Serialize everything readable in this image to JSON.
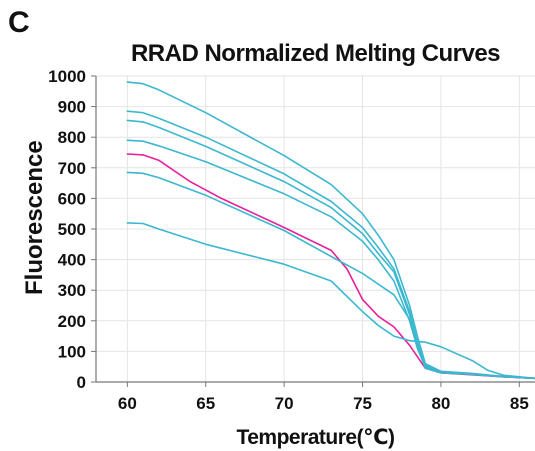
{
  "panel_label": "C",
  "chart_data": {
    "type": "line",
    "title": "RRAD Normalized Melting Curves",
    "xlabel": "Temperature(℃)",
    "ylabel": "Fluorescence",
    "xlim": [
      58,
      86
    ],
    "ylim": [
      0,
      1000
    ],
    "xticks": [
      60,
      65,
      70,
      75,
      80,
      85
    ],
    "yticks": [
      0,
      100,
      200,
      300,
      400,
      500,
      600,
      700,
      800,
      900,
      1000
    ],
    "grid": true,
    "legend": "none",
    "colors": {
      "cyan": "#3bb8d0",
      "magenta": "#e8209a"
    },
    "series": [
      {
        "color": "#3bb8d0",
        "x": [
          60,
          61,
          62,
          65,
          70,
          73,
          75,
          76,
          77,
          78,
          78.5,
          79,
          80,
          82,
          84,
          86
        ],
        "y": [
          980,
          975,
          955,
          880,
          740,
          645,
          550,
          480,
          400,
          250,
          150,
          60,
          35,
          28,
          18,
          12
        ]
      },
      {
        "color": "#3bb8d0",
        "x": [
          60,
          61,
          62,
          65,
          70,
          73,
          75,
          76,
          77,
          78,
          78.5,
          79,
          80,
          82,
          84,
          86
        ],
        "y": [
          885,
          880,
          862,
          800,
          680,
          590,
          505,
          440,
          370,
          230,
          130,
          55,
          32,
          27,
          18,
          12
        ]
      },
      {
        "color": "#3bb8d0",
        "x": [
          60,
          61,
          62,
          65,
          70,
          73,
          75,
          76,
          77,
          78,
          78.5,
          79,
          80,
          82,
          84,
          86
        ],
        "y": [
          855,
          850,
          832,
          770,
          655,
          570,
          485,
          420,
          360,
          220,
          120,
          52,
          30,
          26,
          17,
          12
        ]
      },
      {
        "color": "#3bb8d0",
        "x": [
          60,
          61,
          62,
          65,
          70,
          73,
          75,
          76,
          77,
          78,
          78.5,
          79,
          80,
          82,
          84,
          86
        ],
        "y": [
          790,
          787,
          772,
          720,
          615,
          540,
          460,
          400,
          330,
          200,
          110,
          48,
          30,
          25,
          17,
          12
        ]
      },
      {
        "color": "#e8209a",
        "x": [
          60,
          61,
          62,
          64,
          66,
          70,
          73,
          74,
          75,
          76,
          77,
          78,
          79,
          80,
          84,
          86
        ],
        "y": [
          745,
          742,
          725,
          655,
          600,
          505,
          430,
          370,
          270,
          215,
          180,
          120,
          45,
          30,
          17,
          12
        ]
      },
      {
        "color": "#3bb8d0",
        "x": [
          60,
          61,
          62,
          65,
          70,
          73,
          75,
          76,
          77,
          78,
          78.5,
          79,
          80,
          82,
          84,
          86
        ],
        "y": [
          685,
          682,
          668,
          610,
          495,
          410,
          355,
          320,
          285,
          205,
          120,
          45,
          30,
          25,
          17,
          12
        ]
      },
      {
        "color": "#3bb8d0",
        "x": [
          60,
          61,
          62,
          65,
          70,
          73,
          75,
          76,
          77,
          78,
          79,
          80,
          82,
          83,
          84,
          86
        ],
        "y": [
          520,
          518,
          500,
          450,
          385,
          330,
          230,
          185,
          150,
          135,
          130,
          115,
          70,
          38,
          22,
          12
        ]
      }
    ]
  }
}
